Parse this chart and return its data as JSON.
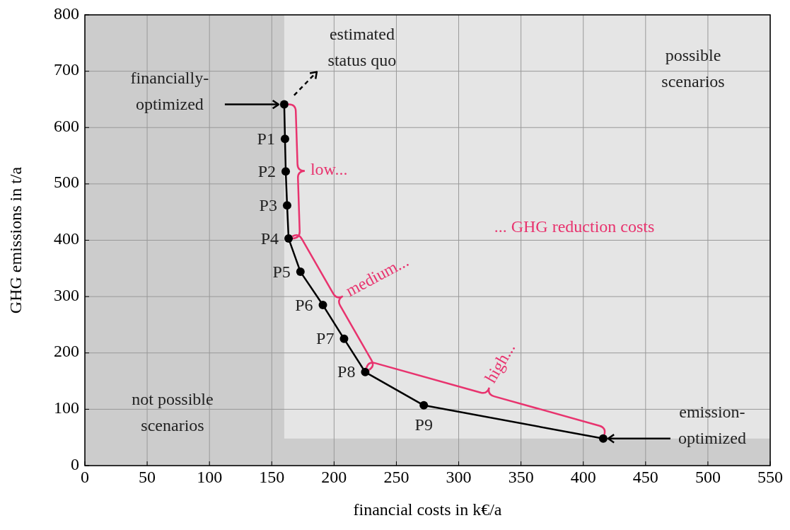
{
  "chart_data": {
    "type": "line",
    "xlabel": "financial costs in k€/a",
    "ylabel": "GHG emissions in t/a",
    "xlim": [
      0,
      550
    ],
    "xticks": [
      0,
      50,
      100,
      150,
      200,
      250,
      300,
      350,
      400,
      450,
      500,
      550
    ],
    "ylim": [
      0,
      800
    ],
    "yticks": [
      0,
      100,
      200,
      300,
      400,
      500,
      600,
      700,
      800
    ],
    "grid": true,
    "line_style": "solid",
    "x": [
      160,
      160.6,
      161.2,
      162.3,
      163.5,
      173,
      191,
      208,
      225,
      272,
      416
    ],
    "series": [
      {
        "color": "#000000",
        "marker": "circle",
        "values": [
          641,
          580,
          522,
          462,
          403,
          344,
          285,
          225,
          166,
          107,
          48
        ],
        "value_labels": [
          null,
          "P1",
          "P2",
          "P3",
          "P4",
          "P5",
          "P6",
          "P7",
          "P8",
          "P9",
          null
        ]
      }
    ],
    "bands": [
      {
        "axis": "x",
        "from": 0,
        "to": 160,
        "color": "#cccccc"
      },
      {
        "axis": "y",
        "from": 0,
        "to": 48,
        "color": "#cccccc"
      }
    ],
    "annotations": [
      {
        "text": "financially-optimized",
        "x": 160,
        "y": 641
      },
      {
        "text": "emission-optimized",
        "x": 416,
        "y": 48
      },
      "estimated status quo",
      "possible scenarios",
      "not possible scenarios",
      "... GHG reduction costs",
      "low...",
      "medium...",
      "high..."
    ]
  }
}
